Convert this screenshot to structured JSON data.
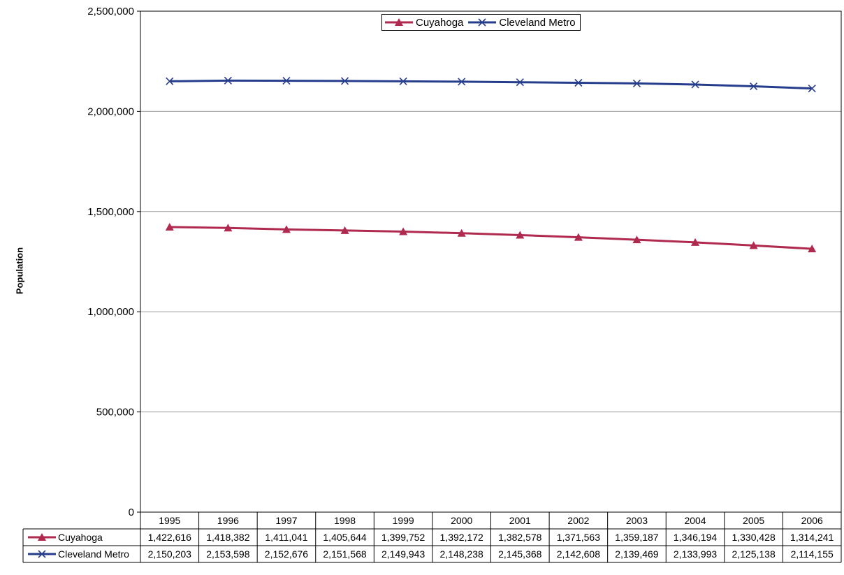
{
  "chart_data": {
    "type": "line",
    "title": "",
    "xlabel": "",
    "ylabel": "Population",
    "ylim": [
      0,
      2500000
    ],
    "yticks": [
      0,
      500000,
      1000000,
      1500000,
      2000000,
      2500000
    ],
    "ytick_labels": [
      "0",
      "500,000",
      "1,000,000",
      "1,500,000",
      "2,000,000",
      "2,500,000"
    ],
    "grid": true,
    "legend_position": "top-center",
    "categories": [
      "1995",
      "1996",
      "1997",
      "1998",
      "1999",
      "2000",
      "2001",
      "2002",
      "2003",
      "2004",
      "2005",
      "2006"
    ],
    "series": [
      {
        "name": "Cuyahoga",
        "color": "#B0294F",
        "marker": "triangle",
        "values": [
          1422616,
          1418382,
          1411041,
          1405644,
          1399752,
          1392172,
          1382578,
          1371563,
          1359187,
          1346194,
          1330428,
          1314241
        ],
        "labels": [
          "1,422,616",
          "1,418,382",
          "1,411,041",
          "1,405,644",
          "1,399,752",
          "1,392,172",
          "1,382,578",
          "1,371,563",
          "1,359,187",
          "1,346,194",
          "1,330,428",
          "1,314,241"
        ]
      },
      {
        "name": "Cleveland Metro",
        "color": "#263D8C",
        "marker": "x",
        "values": [
          2150203,
          2153598,
          2152676,
          2151568,
          2149943,
          2148238,
          2145368,
          2142608,
          2139469,
          2133993,
          2125138,
          2114155
        ],
        "labels": [
          "2,150,203",
          "2,153,598",
          "2,152,676",
          "2,151,568",
          "2,149,943",
          "2,148,238",
          "2,145,368",
          "2,142,608",
          "2,139,469",
          "2,133,993",
          "2,125,138",
          "2,114,155"
        ]
      }
    ]
  }
}
